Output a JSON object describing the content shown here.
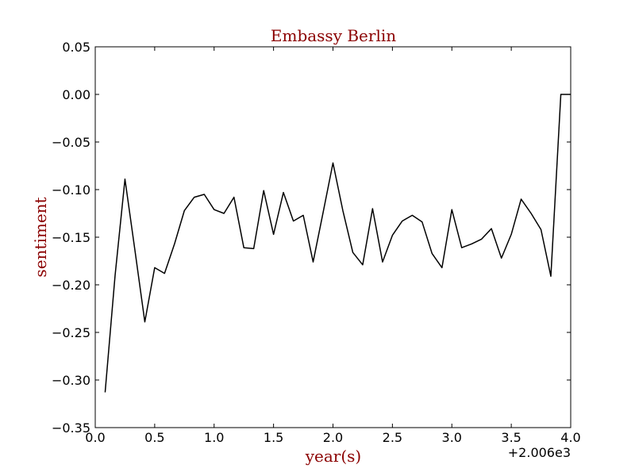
{
  "chart_data": {
    "type": "line",
    "title": "Embassy Berlin",
    "xlabel": "year(s)",
    "ylabel": "sentiment",
    "x_offset_label": "+2.006e3",
    "xlim": [
      0.0,
      4.0
    ],
    "ylim": [
      -0.35,
      0.05
    ],
    "x_ticks": [
      0.0,
      0.5,
      1.0,
      1.5,
      2.0,
      2.5,
      3.0,
      3.5,
      4.0
    ],
    "x_tick_labels": [
      "0.0",
      "0.5",
      "1.0",
      "1.5",
      "2.0",
      "2.5",
      "3.0",
      "3.5",
      "4.0"
    ],
    "y_ticks": [
      0.05,
      0.0,
      -0.05,
      -0.1,
      -0.15,
      -0.2,
      -0.25,
      -0.3,
      -0.35
    ],
    "y_tick_labels": [
      "0.05",
      "0.00",
      "−0.05",
      "−0.10",
      "−0.15",
      "−0.20",
      "−0.25",
      "−0.30",
      "−0.35"
    ],
    "grid": false,
    "colors": {
      "title": "#8b0000",
      "axis_labels": "#8b0000",
      "line": "#000000"
    },
    "series": [
      {
        "x": [
          0.083,
          0.167,
          0.25,
          0.333,
          0.417,
          0.5,
          0.583,
          0.667,
          0.75,
          0.833,
          0.917,
          1.0,
          1.083,
          1.167,
          1.25,
          1.333,
          1.417,
          1.5,
          1.583,
          1.667,
          1.75,
          1.833,
          1.917,
          2.0,
          2.083,
          2.167,
          2.25,
          2.333,
          2.417,
          2.5,
          2.583,
          2.667,
          2.75,
          2.833,
          2.917,
          3.0,
          3.083,
          3.167,
          3.25,
          3.333,
          3.417,
          3.5,
          3.583,
          3.667,
          3.75,
          3.833,
          3.917,
          4.0
        ],
        "y": [
          -0.313,
          -0.19,
          -0.089,
          -0.163,
          -0.239,
          -0.182,
          -0.188,
          -0.157,
          -0.122,
          -0.108,
          -0.105,
          -0.121,
          -0.125,
          -0.108,
          -0.161,
          -0.162,
          -0.101,
          -0.147,
          -0.103,
          -0.133,
          -0.127,
          -0.176,
          -0.124,
          -0.072,
          -0.122,
          -0.166,
          -0.179,
          -0.12,
          -0.176,
          -0.148,
          -0.133,
          -0.127,
          -0.134,
          -0.167,
          -0.182,
          -0.121,
          -0.161,
          -0.157,
          -0.152,
          -0.141,
          -0.172,
          -0.147,
          -0.11,
          -0.125,
          -0.142,
          -0.191,
          0.0,
          0.0
        ]
      }
    ]
  }
}
